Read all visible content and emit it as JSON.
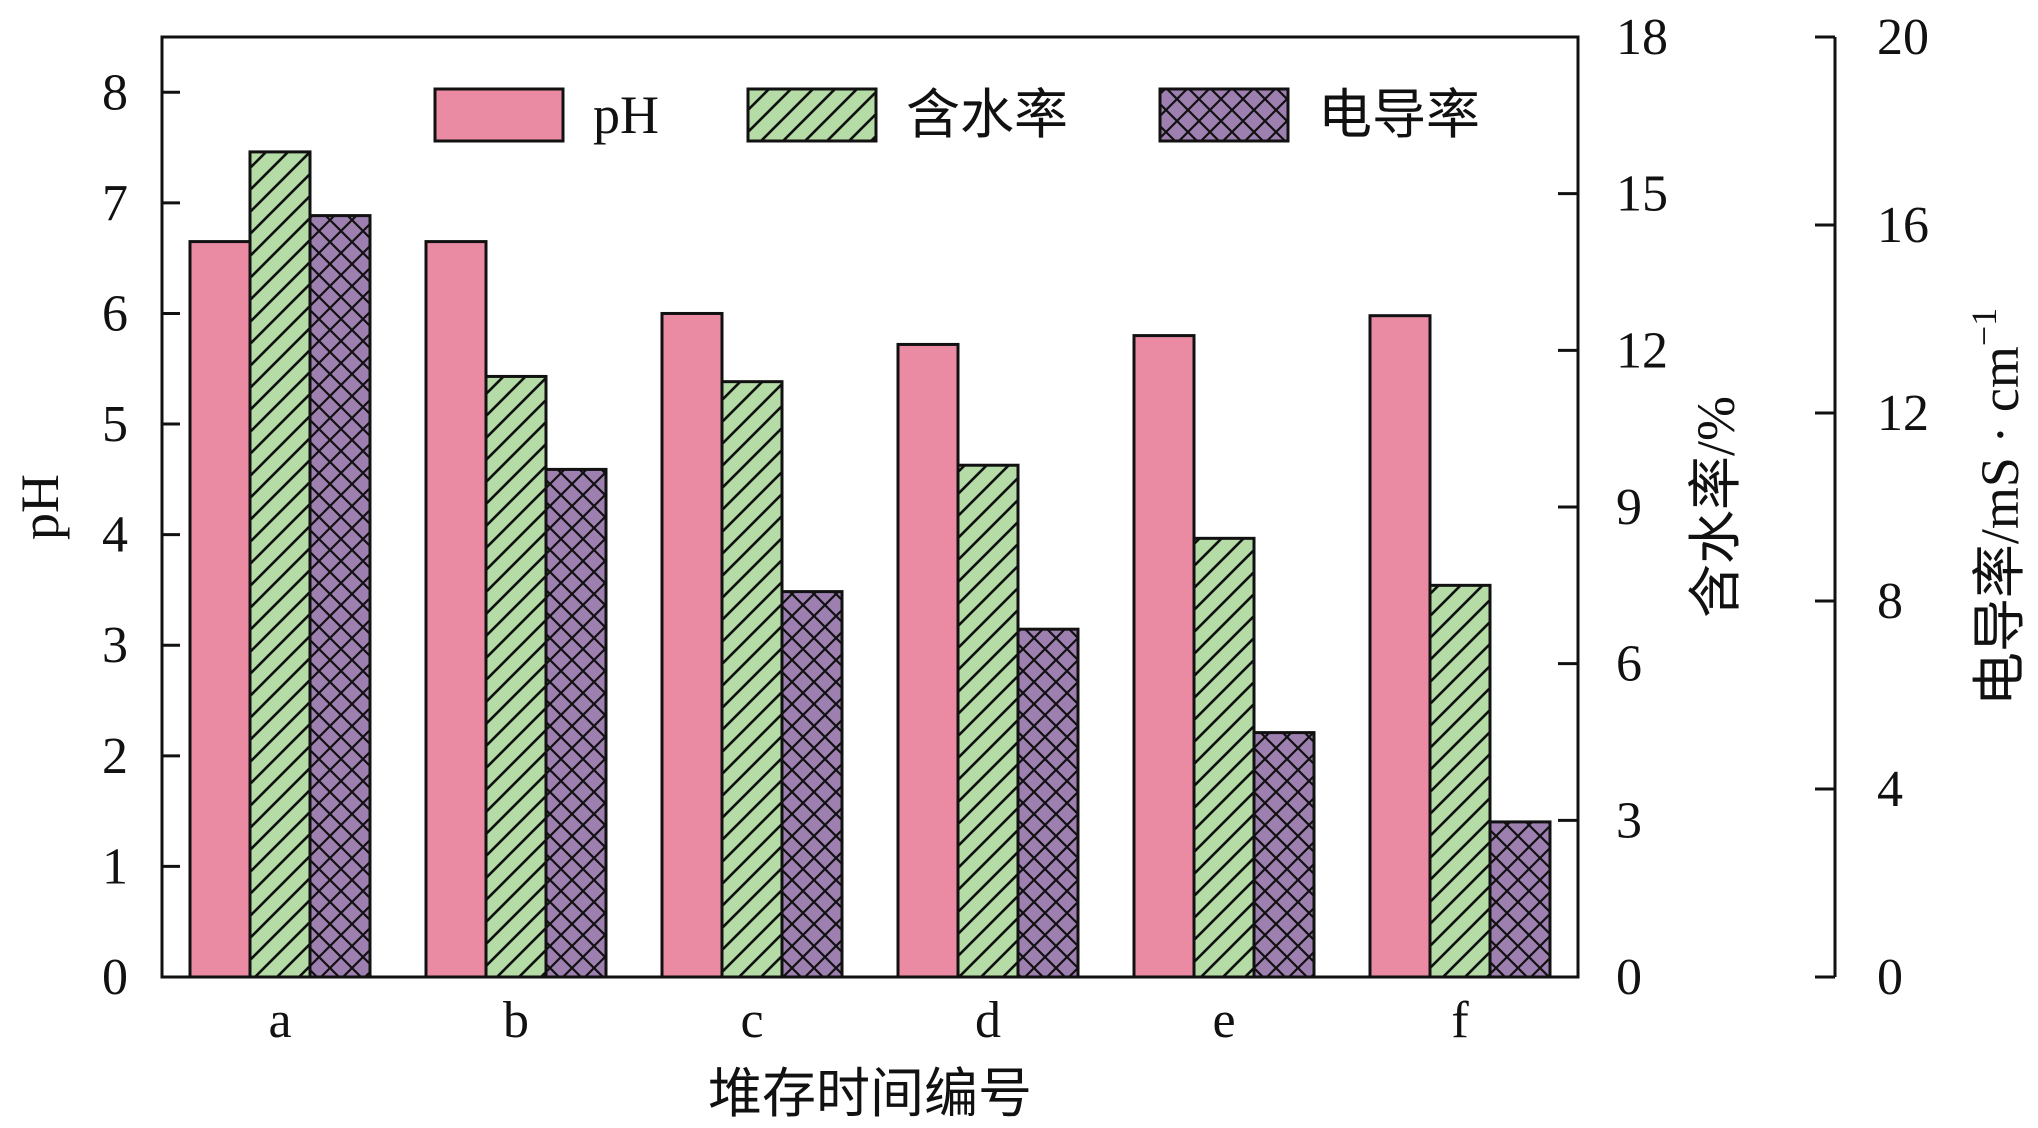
{
  "chart_data": {
    "type": "bar",
    "categories": [
      "a",
      "b",
      "c",
      "d",
      "e",
      "f"
    ],
    "xlabel": "堆存时间编号",
    "series": [
      {
        "name": "pH",
        "axis": "left",
        "values": [
          6.65,
          6.65,
          6.0,
          5.72,
          5.8,
          5.98
        ],
        "color": "#ea8aa3",
        "pattern": "solid"
      },
      {
        "name": "含水率",
        "axis": "right1",
        "values": [
          15.8,
          11.5,
          11.4,
          9.8,
          8.4,
          7.5
        ],
        "color": "#b5dca7",
        "pattern": "diagonal-hatch"
      },
      {
        "name": "电导率",
        "axis": "right2",
        "values": [
          16.2,
          10.8,
          8.2,
          7.4,
          5.2,
          3.3
        ],
        "color": "#9d7fb0",
        "pattern": "cross-hatch"
      }
    ],
    "axes": {
      "left": {
        "label": "pH",
        "ylim": [
          0,
          8.5
        ],
        "ticks": [
          "0",
          "1",
          "2",
          "3",
          "4",
          "5",
          "6",
          "7",
          "8"
        ]
      },
      "right1": {
        "label": "含水率/%",
        "ylim": [
          0,
          18
        ],
        "ticks": [
          "0",
          "3",
          "6",
          "9",
          "12",
          "15",
          "18"
        ]
      },
      "right2": {
        "label": "电导率/mS · cm",
        "label_sup": "−1",
        "ylim": [
          0,
          20
        ],
        "ticks": [
          "0",
          "4",
          "8",
          "12",
          "16",
          "20"
        ]
      }
    },
    "legend": {
      "position": "top",
      "entries": [
        "pH",
        "含水率",
        "电导率"
      ]
    },
    "grid": false
  }
}
